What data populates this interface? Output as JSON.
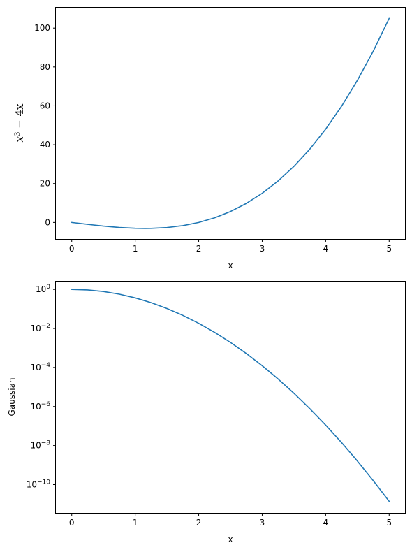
{
  "chart_data": [
    {
      "type": "line",
      "title": "",
      "xlabel": "x",
      "ylabel": "x³ − 4x",
      "ylabel_parts": {
        "base": "x",
        "exponent": "3",
        "rest": " − 4x"
      },
      "xlim": [
        -0.25,
        5.25
      ],
      "ylim": [
        -8.5,
        110.5
      ],
      "yscale": "linear",
      "grid": false,
      "x_ticks": [
        0,
        1,
        2,
        3,
        4,
        5
      ],
      "x_tick_labels": [
        "0",
        "1",
        "2",
        "3",
        "4",
        "5"
      ],
      "y_ticks": [
        0,
        20,
        40,
        60,
        80,
        100
      ],
      "y_tick_labels": [
        "0",
        "20",
        "40",
        "60",
        "80",
        "100"
      ],
      "color": "#1f77b4",
      "series": [
        {
          "x": [
            0,
            0.25,
            0.5,
            0.75,
            1.0,
            1.155,
            1.25,
            1.5,
            1.75,
            2.0,
            2.25,
            2.5,
            2.75,
            3.0,
            3.25,
            3.5,
            3.75,
            4.0,
            4.25,
            4.5,
            4.75,
            5.0
          ],
          "y": [
            0,
            -0.98,
            -1.88,
            -2.58,
            -3.0,
            -3.08,
            -3.05,
            -2.63,
            -1.64,
            0,
            2.39,
            5.63,
            9.8,
            15.0,
            21.33,
            28.88,
            37.73,
            48.0,
            59.77,
            73.13,
            88.17,
            105.0
          ]
        }
      ]
    },
    {
      "type": "line",
      "title": "",
      "xlabel": "x",
      "ylabel": "Gaussian",
      "xlim": [
        -0.25,
        5.25
      ],
      "ylim_log10": [
        -11.45,
        0.4
      ],
      "yscale": "log",
      "grid": false,
      "x_ticks": [
        0,
        1,
        2,
        3,
        4,
        5
      ],
      "x_tick_labels": [
        "0",
        "1",
        "2",
        "3",
        "4",
        "5"
      ],
      "y_ticks_log10": [
        0,
        -2,
        -4,
        -6,
        -8,
        -10
      ],
      "y_tick_labels": [
        {
          "base": "10",
          "exp": "0"
        },
        {
          "base": "10",
          "exp": "−2"
        },
        {
          "base": "10",
          "exp": "−4"
        },
        {
          "base": "10",
          "exp": "−6"
        },
        {
          "base": "10",
          "exp": "−8"
        },
        {
          "base": "10",
          "exp": "−10"
        }
      ],
      "color": "#1f77b4",
      "series": [
        {
          "x": [
            0,
            0.25,
            0.5,
            0.75,
            1.0,
            1.25,
            1.5,
            1.75,
            2.0,
            2.25,
            2.5,
            2.75,
            3.0,
            3.25,
            3.5,
            3.75,
            4.0,
            4.25,
            4.5,
            4.75,
            5.0
          ],
          "y": [
            1,
            0.9394,
            0.7788,
            0.5698,
            0.3679,
            0.2096,
            0.1054,
            0.04677,
            0.01832,
            0.00633,
            0.00193,
            0.0005196,
            0.0001234,
            2.588e-05,
            4.785e-06,
            7.808e-07,
            1.125e-07,
            1.43e-08,
            1.604e-09,
            1.589e-10,
            1.389e-11
          ]
        }
      ]
    }
  ]
}
